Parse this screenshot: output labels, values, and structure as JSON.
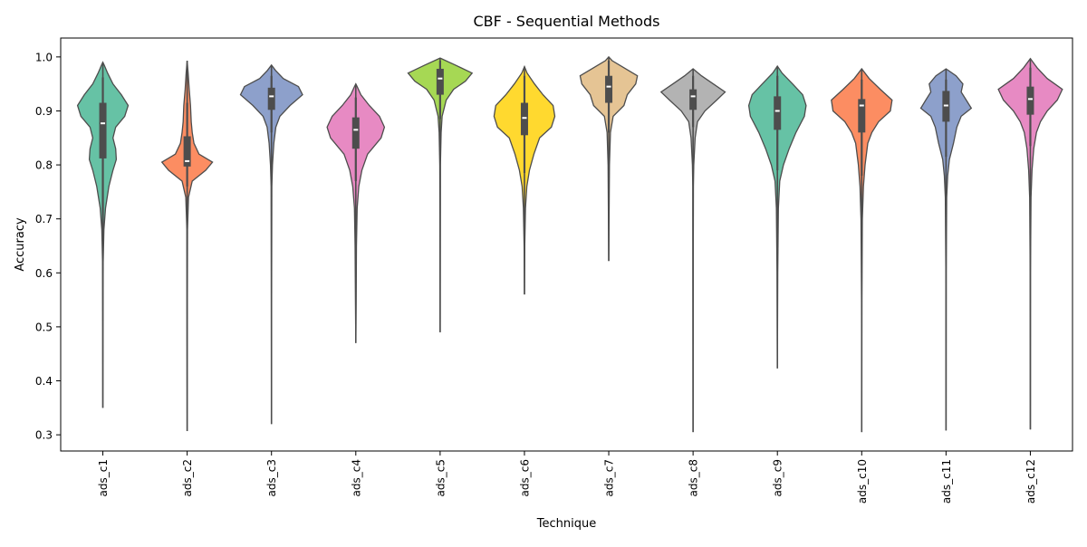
{
  "chart_data": {
    "type": "violin",
    "title": "CBF - Sequential Methods",
    "xlabel": "Technique",
    "ylabel": "Accuracy",
    "ylim": [
      0.27,
      1.035
    ],
    "yticks": [
      0.3,
      0.4,
      0.5,
      0.6,
      0.7,
      0.8,
      0.9,
      1.0
    ],
    "ytick_labels": [
      "0.3",
      "0.4",
      "0.5",
      "0.6",
      "0.7",
      "0.8",
      "0.9",
      "1.0"
    ],
    "grid": false,
    "categories": [
      "ads_c1",
      "ads_c2",
      "ads_c3",
      "ads_c4",
      "ads_c5",
      "ads_c6",
      "ads_c7",
      "ads_c8",
      "ads_c9",
      "ads_c10",
      "ads_c11",
      "ads_c12"
    ],
    "colors": [
      "#66c2a5",
      "#fc8d62",
      "#8da0cb",
      "#e78ac3",
      "#a6d854",
      "#ffd92f",
      "#e5c494",
      "#b3b3b3",
      "#66c2a5",
      "#fc8d62",
      "#8da0cb",
      "#e78ac3"
    ],
    "violins": [
      {
        "min": 0.35,
        "max": 0.99,
        "q1": 0.812,
        "median": 0.877,
        "q3": 0.915,
        "whisker_low": 0.68,
        "whisker_high": 0.962,
        "density": [
          [
            0.35,
            0
          ],
          [
            0.5,
            0.005
          ],
          [
            0.62,
            0.01
          ],
          [
            0.68,
            0.03
          ],
          [
            0.72,
            0.08
          ],
          [
            0.76,
            0.18
          ],
          [
            0.79,
            0.3
          ],
          [
            0.81,
            0.4
          ],
          [
            0.83,
            0.38
          ],
          [
            0.85,
            0.3
          ],
          [
            0.87,
            0.38
          ],
          [
            0.89,
            0.65
          ],
          [
            0.91,
            0.75
          ],
          [
            0.93,
            0.55
          ],
          [
            0.95,
            0.3
          ],
          [
            0.97,
            0.14
          ],
          [
            0.985,
            0.04
          ],
          [
            0.99,
            0
          ]
        ]
      },
      {
        "min": 0.307,
        "max": 0.993,
        "q1": 0.797,
        "median": 0.807,
        "q3": 0.853,
        "whisker_low": 0.76,
        "whisker_high": 0.915,
        "density": [
          [
            0.307,
            0
          ],
          [
            0.5,
            0.005
          ],
          [
            0.68,
            0.01
          ],
          [
            0.74,
            0.04
          ],
          [
            0.77,
            0.15
          ],
          [
            0.79,
            0.55
          ],
          [
            0.805,
            0.75
          ],
          [
            0.82,
            0.35
          ],
          [
            0.84,
            0.2
          ],
          [
            0.86,
            0.15
          ],
          [
            0.88,
            0.12
          ],
          [
            0.91,
            0.1
          ],
          [
            0.94,
            0.06
          ],
          [
            0.97,
            0.03
          ],
          [
            0.993,
            0
          ]
        ]
      },
      {
        "min": 0.32,
        "max": 0.985,
        "q1": 0.902,
        "median": 0.927,
        "q3": 0.943,
        "whisker_low": 0.86,
        "whisker_high": 0.965,
        "density": [
          [
            0.32,
            0
          ],
          [
            0.6,
            0.005
          ],
          [
            0.76,
            0.01
          ],
          [
            0.8,
            0.03
          ],
          [
            0.84,
            0.07
          ],
          [
            0.87,
            0.13
          ],
          [
            0.89,
            0.25
          ],
          [
            0.91,
            0.55
          ],
          [
            0.93,
            0.92
          ],
          [
            0.945,
            0.8
          ],
          [
            0.96,
            0.35
          ],
          [
            0.975,
            0.12
          ],
          [
            0.985,
            0
          ]
        ]
      },
      {
        "min": 0.47,
        "max": 0.95,
        "q1": 0.83,
        "median": 0.865,
        "q3": 0.888,
        "whisker_low": 0.77,
        "whisker_high": 0.925,
        "density": [
          [
            0.47,
            0
          ],
          [
            0.55,
            0.01
          ],
          [
            0.65,
            0.02
          ],
          [
            0.72,
            0.04
          ],
          [
            0.76,
            0.09
          ],
          [
            0.79,
            0.18
          ],
          [
            0.82,
            0.35
          ],
          [
            0.85,
            0.75
          ],
          [
            0.87,
            0.85
          ],
          [
            0.89,
            0.7
          ],
          [
            0.91,
            0.4
          ],
          [
            0.93,
            0.15
          ],
          [
            0.945,
            0.04
          ],
          [
            0.95,
            0
          ]
        ]
      },
      {
        "min": 0.49,
        "max": 0.998,
        "q1": 0.93,
        "median": 0.96,
        "q3": 0.978,
        "whisker_low": 0.885,
        "whisker_high": 0.993,
        "density": [
          [
            0.49,
            0
          ],
          [
            0.7,
            0.005
          ],
          [
            0.8,
            0.01
          ],
          [
            0.86,
            0.03
          ],
          [
            0.89,
            0.06
          ],
          [
            0.92,
            0.18
          ],
          [
            0.94,
            0.4
          ],
          [
            0.955,
            0.75
          ],
          [
            0.97,
            0.95
          ],
          [
            0.985,
            0.45
          ],
          [
            0.998,
            0
          ]
        ]
      },
      {
        "min": 0.56,
        "max": 0.982,
        "q1": 0.855,
        "median": 0.887,
        "q3": 0.915,
        "whisker_low": 0.785,
        "whisker_high": 0.965,
        "density": [
          [
            0.56,
            0
          ],
          [
            0.65,
            0.01
          ],
          [
            0.72,
            0.03
          ],
          [
            0.76,
            0.07
          ],
          [
            0.79,
            0.15
          ],
          [
            0.82,
            0.28
          ],
          [
            0.85,
            0.45
          ],
          [
            0.87,
            0.8
          ],
          [
            0.89,
            0.9
          ],
          [
            0.91,
            0.85
          ],
          [
            0.93,
            0.55
          ],
          [
            0.95,
            0.3
          ],
          [
            0.97,
            0.08
          ],
          [
            0.982,
            0
          ]
        ]
      },
      {
        "min": 0.622,
        "max": 1.0,
        "q1": 0.915,
        "median": 0.945,
        "q3": 0.965,
        "whisker_low": 0.86,
        "whisker_high": 0.993,
        "density": [
          [
            0.622,
            0
          ],
          [
            0.7,
            0.01
          ],
          [
            0.8,
            0.02
          ],
          [
            0.86,
            0.05
          ],
          [
            0.89,
            0.13
          ],
          [
            0.91,
            0.45
          ],
          [
            0.93,
            0.55
          ],
          [
            0.95,
            0.8
          ],
          [
            0.965,
            0.85
          ],
          [
            0.98,
            0.45
          ],
          [
            0.993,
            0.1
          ],
          [
            1.0,
            0
          ]
        ]
      },
      {
        "min": 0.305,
        "max": 0.978,
        "q1": 0.902,
        "median": 0.927,
        "q3": 0.94,
        "whisker_low": 0.87,
        "whisker_high": 0.965,
        "density": [
          [
            0.305,
            0
          ],
          [
            0.6,
            0.005
          ],
          [
            0.76,
            0.01
          ],
          [
            0.8,
            0.02
          ],
          [
            0.85,
            0.06
          ],
          [
            0.88,
            0.13
          ],
          [
            0.9,
            0.35
          ],
          [
            0.92,
            0.7
          ],
          [
            0.935,
            0.95
          ],
          [
            0.95,
            0.6
          ],
          [
            0.965,
            0.25
          ],
          [
            0.978,
            0
          ]
        ]
      },
      {
        "min": 0.423,
        "max": 0.983,
        "q1": 0.865,
        "median": 0.9,
        "q3": 0.927,
        "whisker_low": 0.79,
        "whisker_high": 0.965,
        "density": [
          [
            0.423,
            0
          ],
          [
            0.6,
            0.01
          ],
          [
            0.72,
            0.03
          ],
          [
            0.77,
            0.07
          ],
          [
            0.8,
            0.18
          ],
          [
            0.83,
            0.35
          ],
          [
            0.86,
            0.55
          ],
          [
            0.89,
            0.8
          ],
          [
            0.91,
            0.85
          ],
          [
            0.93,
            0.75
          ],
          [
            0.95,
            0.45
          ],
          [
            0.97,
            0.14
          ],
          [
            0.983,
            0
          ]
        ]
      },
      {
        "min": 0.305,
        "max": 0.978,
        "q1": 0.86,
        "median": 0.91,
        "q3": 0.922,
        "whisker_low": 0.78,
        "whisker_high": 0.958,
        "density": [
          [
            0.305,
            0
          ],
          [
            0.55,
            0.005
          ],
          [
            0.7,
            0.02
          ],
          [
            0.76,
            0.05
          ],
          [
            0.8,
            0.1
          ],
          [
            0.84,
            0.18
          ],
          [
            0.86,
            0.3
          ],
          [
            0.88,
            0.5
          ],
          [
            0.9,
            0.85
          ],
          [
            0.92,
            0.9
          ],
          [
            0.94,
            0.55
          ],
          [
            0.96,
            0.22
          ],
          [
            0.978,
            0
          ]
        ]
      },
      {
        "min": 0.308,
        "max": 0.978,
        "q1": 0.88,
        "median": 0.91,
        "q3": 0.937,
        "whisker_low": 0.815,
        "whisker_high": 0.958,
        "density": [
          [
            0.308,
            0
          ],
          [
            0.6,
            0.005
          ],
          [
            0.74,
            0.02
          ],
          [
            0.78,
            0.05
          ],
          [
            0.81,
            0.1
          ],
          [
            0.84,
            0.22
          ],
          [
            0.87,
            0.32
          ],
          [
            0.89,
            0.45
          ],
          [
            0.905,
            0.75
          ],
          [
            0.92,
            0.6
          ],
          [
            0.935,
            0.45
          ],
          [
            0.95,
            0.5
          ],
          [
            0.965,
            0.3
          ],
          [
            0.978,
            0
          ]
        ]
      },
      {
        "min": 0.31,
        "max": 0.997,
        "q1": 0.893,
        "median": 0.922,
        "q3": 0.945,
        "whisker_low": 0.835,
        "whisker_high": 0.98,
        "density": [
          [
            0.31,
            0
          ],
          [
            0.6,
            0.005
          ],
          [
            0.74,
            0.02
          ],
          [
            0.79,
            0.05
          ],
          [
            0.83,
            0.1
          ],
          [
            0.86,
            0.18
          ],
          [
            0.88,
            0.3
          ],
          [
            0.9,
            0.5
          ],
          [
            0.92,
            0.8
          ],
          [
            0.94,
            0.95
          ],
          [
            0.96,
            0.5
          ],
          [
            0.98,
            0.2
          ],
          [
            0.997,
            0
          ]
        ]
      }
    ]
  }
}
